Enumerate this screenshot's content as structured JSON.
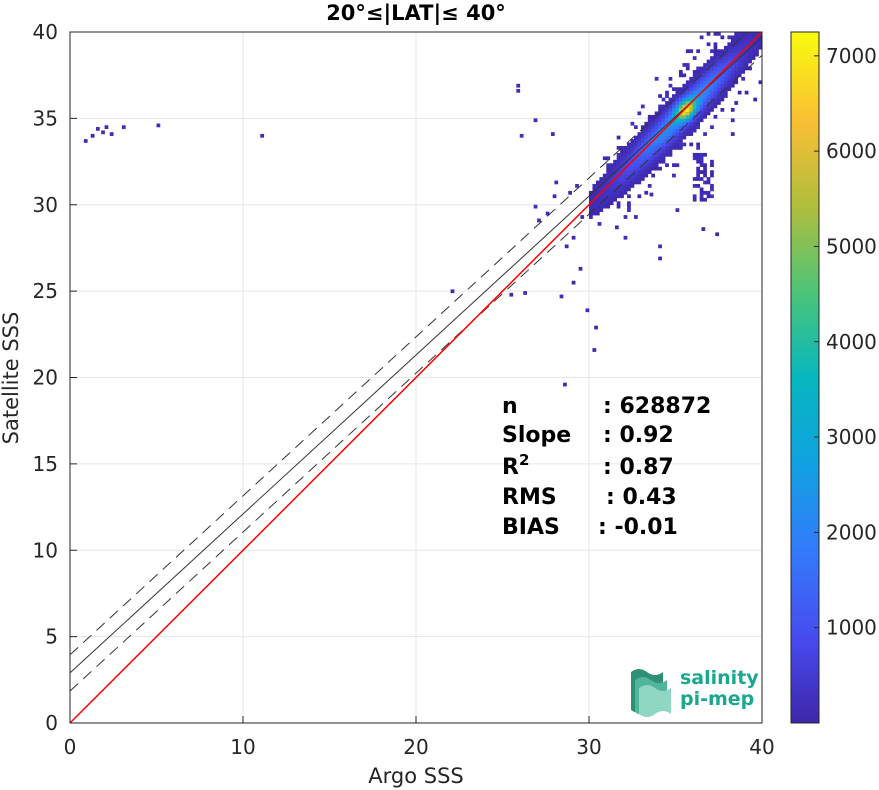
{
  "chart_data": {
    "type": "heatmap",
    "title": "20°≤|LAT|≤ 40°",
    "xlabel": "Argo SSS",
    "ylabel": "Satellite SSS",
    "xlim": [
      0,
      40
    ],
    "ylim": [
      0,
      40
    ],
    "xticks": [
      "0",
      "10",
      "20",
      "30",
      "40"
    ],
    "yticks": [
      "0",
      "5",
      "10",
      "15",
      "20",
      "25",
      "30",
      "35",
      "40"
    ],
    "grid": true,
    "colorbar": {
      "min": 0,
      "max": 7250,
      "ticks": [
        "1000",
        "2000",
        "3000",
        "4000",
        "5000",
        "6000",
        "7000"
      ],
      "tick_values": [
        1000,
        2000,
        3000,
        4000,
        5000,
        6000,
        7000
      ],
      "colormap": "parula"
    },
    "reference_line": {
      "slope": 1,
      "intercept": 0,
      "color": "#ff0000"
    },
    "fit_line": {
      "slope": 0.92,
      "intercept": 2.9,
      "color": "#333333"
    },
    "fit_band_offset": 1.05,
    "density_core": {
      "x": 35.5,
      "y": 35.4,
      "peak": 7200
    },
    "stats": [
      {
        "label": "n",
        "value": ": 628872"
      },
      {
        "label": "Slope",
        "value": ": 0.92"
      },
      {
        "label": "R",
        "sup": "2",
        "value": ": 0.87"
      },
      {
        "label": "RMS",
        "value": ": 0.43"
      },
      {
        "label": "BIAS",
        "value": ": -0.01"
      }
    ]
  },
  "logo": {
    "line1": "salinity",
    "line2": "pi-mep"
  }
}
